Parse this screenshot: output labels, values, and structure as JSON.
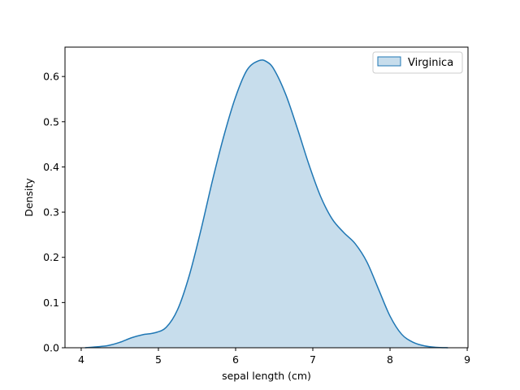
{
  "chart_data": {
    "type": "area",
    "title": "",
    "xlabel": "sepal length (cm)",
    "ylabel": "Density",
    "xlim": [
      3.79,
      9.01
    ],
    "ylim": [
      0,
      0.665
    ],
    "x_ticks": [
      4,
      5,
      6,
      7,
      8,
      9
    ],
    "y_ticks": [
      0.0,
      0.1,
      0.2,
      0.3,
      0.4,
      0.5,
      0.6
    ],
    "y_tick_labels": [
      "0.0",
      "0.1",
      "0.2",
      "0.3",
      "0.4",
      "0.5",
      "0.6"
    ],
    "grid": false,
    "legend": {
      "position": "top-right",
      "entries": [
        "Virginica"
      ]
    },
    "colors": {
      "line": "#1f77b4",
      "fill": "#1f77b4",
      "fill_opacity": 0.25
    },
    "series": [
      {
        "name": "Virginica",
        "x": [
          4.05,
          4.2,
          4.35,
          4.5,
          4.65,
          4.8,
          4.95,
          5.1,
          5.25,
          5.4,
          5.55,
          5.7,
          5.85,
          6.0,
          6.15,
          6.3,
          6.4,
          6.5,
          6.65,
          6.8,
          6.95,
          7.1,
          7.25,
          7.4,
          7.55,
          7.7,
          7.85,
          8.0,
          8.15,
          8.3,
          8.45,
          8.6,
          8.75
        ],
        "y": [
          0.0,
          0.002,
          0.005,
          0.012,
          0.022,
          0.029,
          0.033,
          0.045,
          0.085,
          0.16,
          0.26,
          0.37,
          0.47,
          0.555,
          0.615,
          0.635,
          0.633,
          0.615,
          0.56,
          0.485,
          0.405,
          0.335,
          0.285,
          0.255,
          0.23,
          0.19,
          0.13,
          0.07,
          0.03,
          0.012,
          0.004,
          0.001,
          0.0
        ]
      }
    ]
  }
}
